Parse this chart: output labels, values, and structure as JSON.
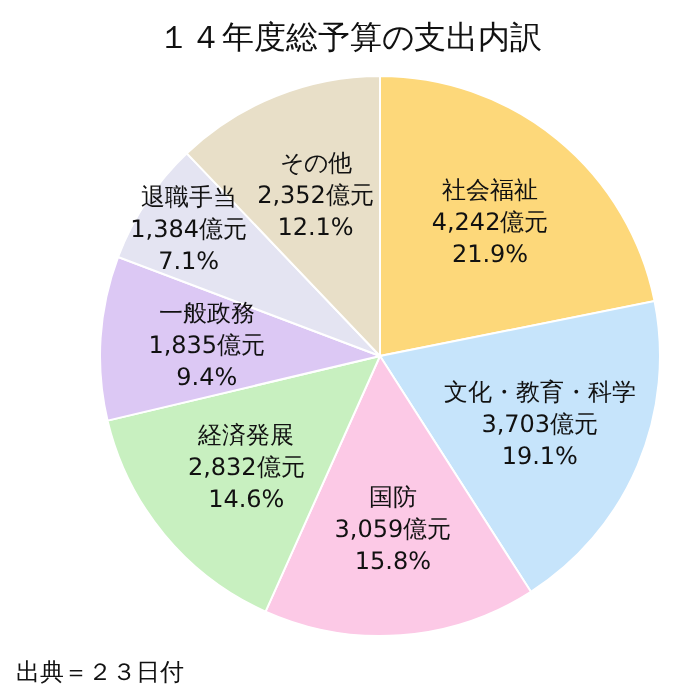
{
  "chart_data": {
    "type": "pie",
    "title": "１４年度総予算の支出内訳",
    "categories": [
      "社会福祉",
      "文化・教育・科学",
      "国防",
      "経済発展",
      "一般政務",
      "退職手当",
      "その他"
    ],
    "values": [
      4242,
      3703,
      3059,
      2832,
      1835,
      1384,
      2352
    ],
    "colors": [
      "#fdd87a",
      "#c6e4fb",
      "#fcc9e6",
      "#c8f0c0",
      "#dcc8f4",
      "#e4e4f2",
      "#e8dfc8"
    ],
    "value_labels": [
      "4,242億元\n21.9%",
      "3,703億元\n19.1%",
      "3,059億元\n15.8%",
      "2,832億元\n14.6%",
      "1,835億元\n9.4%",
      "1,384億元\n7.1%",
      "2,352億元\n12.1%"
    ],
    "annotations": [
      "出典＝２３日付"
    ]
  }
}
